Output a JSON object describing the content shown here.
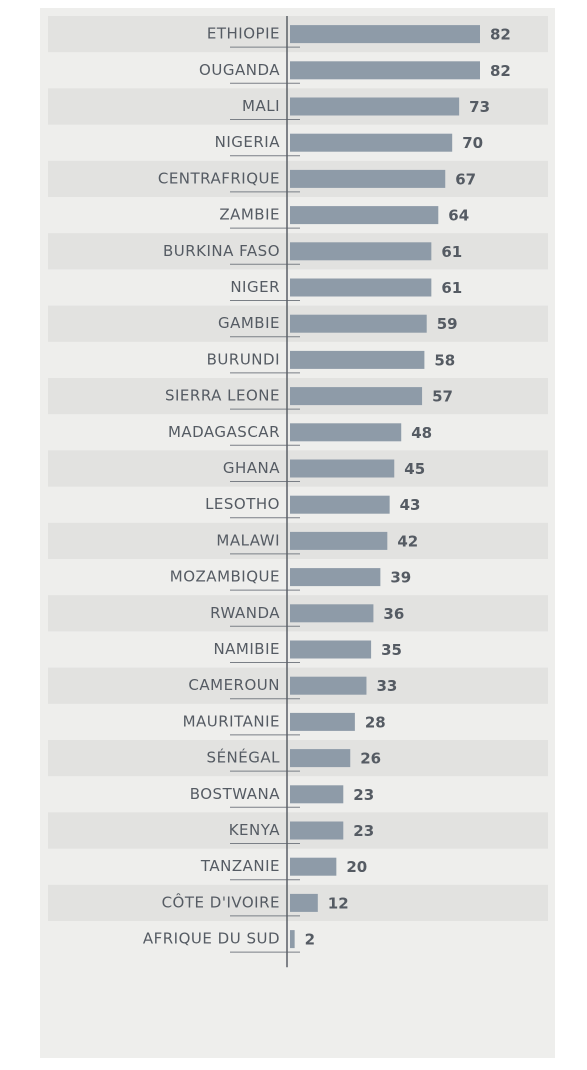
{
  "chart_data": {
    "type": "barh",
    "categories": [
      "ETHIOPIE",
      "OUGANDA",
      "MALI",
      "NIGERIA",
      "CENTRAFRIQUE",
      "ZAMBIE",
      "BURKINA FASO",
      "NIGER",
      "GAMBIE",
      "BURUNDI",
      "SIERRA LEONE",
      "MADAGASCAR",
      "GHANA",
      "LESOTHO",
      "MALAWI",
      "MOZAMBIQUE",
      "RWANDA",
      "NAMIBIE",
      "CAMEROUN",
      "MAURITANIE",
      "SÉNÉGAL",
      "BOSTWANA",
      "KENYA",
      "TANZANIE",
      "CÔTE D'IVOIRE",
      "AFRIQUE DU SUD"
    ],
    "values": [
      82,
      82,
      73,
      70,
      67,
      64,
      61,
      61,
      59,
      58,
      57,
      48,
      45,
      43,
      42,
      39,
      36,
      35,
      33,
      28,
      26,
      23,
      23,
      20,
      12,
      2
    ],
    "color": "#8e9ba8"
  }
}
